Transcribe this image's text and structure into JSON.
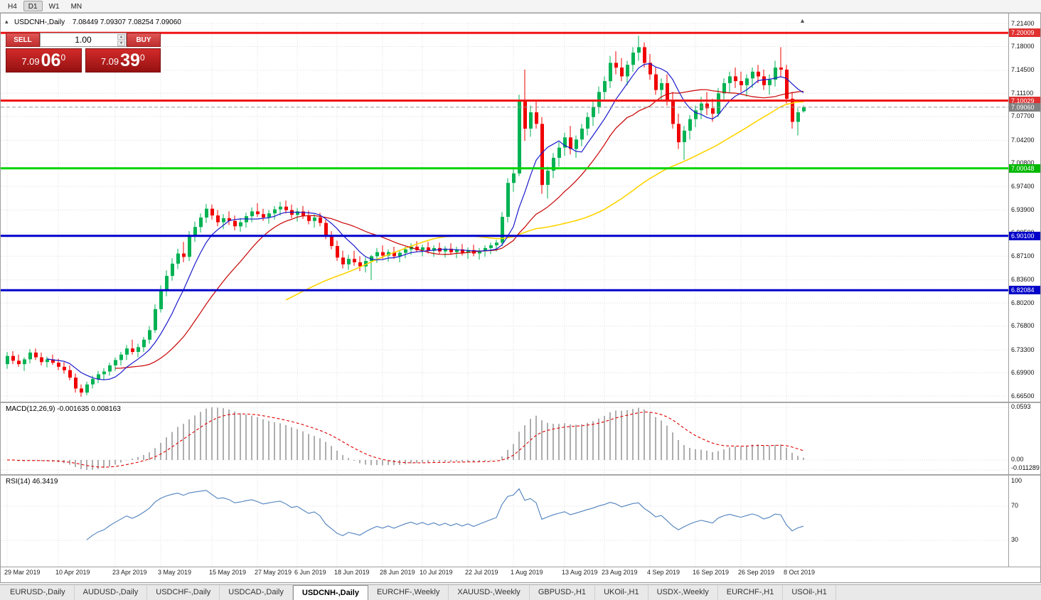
{
  "toolbar": {
    "timeframes": [
      {
        "label": "H4",
        "active": false
      },
      {
        "label": "D1",
        "active": true
      },
      {
        "label": "W1",
        "active": false
      },
      {
        "label": "MN",
        "active": false
      }
    ]
  },
  "chart": {
    "title_symbol": "USDCNH-,Daily",
    "title_ohlc": "7.08449 7.09307 7.08254 7.09060"
  },
  "icons": {
    "oct_toggle": "▴",
    "chart_shift": "▲",
    "spinner_up": "▲",
    "spinner_down": "▼"
  },
  "trade_panel": {
    "sell_label": "SELL",
    "buy_label": "BUY",
    "volume": "1.00",
    "sell_price": {
      "base": "7.09",
      "big": "06",
      "sup": "0"
    },
    "buy_price": {
      "base": "7.09",
      "big": "39",
      "sup": "0"
    }
  },
  "price_axis": {
    "ticks": [
      "7.21400",
      "7.18000",
      "7.14500",
      "7.11100",
      "7.07700",
      "7.04200",
      "7.00800",
      "6.97400",
      "6.93900",
      "6.90500",
      "6.87100",
      "6.83600",
      "6.80200",
      "6.76800",
      "6.73300",
      "6.69900",
      "6.66500"
    ]
  },
  "levels": [
    {
      "label": "7.20009",
      "value": 7.20009,
      "line_color": "#f01414",
      "badge_color": "#e03030",
      "width": 3,
      "dashed": false
    },
    {
      "label": "7.10029",
      "value": 7.10029,
      "line_color": "#f01414",
      "badge_color": "#e03030",
      "width": 3,
      "dashed": false
    },
    {
      "label": "7.09060",
      "value": 7.0906,
      "line_color": "#9a9a9a",
      "badge_color": "#808080",
      "width": 1,
      "dashed": true
    },
    {
      "label": "7.00048",
      "value": 7.00048,
      "line_color": "#00d400",
      "badge_color": "#00b800",
      "width": 3,
      "dashed": false
    },
    {
      "label": "6.90100",
      "value": 6.901,
      "line_color": "#0000cc",
      "badge_color": "#0000c8",
      "width": 3,
      "dashed": false
    },
    {
      "label": "6.82084",
      "value": 6.82084,
      "line_color": "#0000cc",
      "badge_color": "#0000c8",
      "width": 3,
      "dashed": false
    }
  ],
  "indicators": {
    "macd": {
      "label": "MACD(12,26,9) -0.001635 0.008163",
      "axis": [
        "0.0593",
        "0.00",
        "-0.011289"
      ]
    },
    "rsi": {
      "label": "RSI(14) 46.3419",
      "axis": [
        "100",
        "70",
        "30"
      ]
    }
  },
  "dates": [
    {
      "label": "29 Mar 2019",
      "i": 0
    },
    {
      "label": "10 Apr 2019",
      "i": 9
    },
    {
      "label": "23 Apr 2019",
      "i": 19
    },
    {
      "label": "3 May 2019",
      "i": 27
    },
    {
      "label": "15 May 2019",
      "i": 36
    },
    {
      "label": "27 May 2019",
      "i": 44
    },
    {
      "label": "6 Jun 2019",
      "i": 51
    },
    {
      "label": "18 Jun 2019",
      "i": 58
    },
    {
      "label": "28 Jun 2019",
      "i": 66
    },
    {
      "label": "10 Jul 2019",
      "i": 73
    },
    {
      "label": "22 Jul 2019",
      "i": 81
    },
    {
      "label": "1 Aug 2019",
      "i": 89
    },
    {
      "label": "13 Aug 2019",
      "i": 98
    },
    {
      "label": "23 Aug 2019",
      "i": 105
    },
    {
      "label": "4 Sep 2019",
      "i": 113
    },
    {
      "label": "16 Sep 2019",
      "i": 121
    },
    {
      "label": "26 Sep 2019",
      "i": 129
    },
    {
      "label": "8 Oct 2019",
      "i": 137
    }
  ],
  "tabs": [
    {
      "label": "EURUSD-,Daily",
      "active": false
    },
    {
      "label": "AUDUSD-,Daily",
      "active": false
    },
    {
      "label": "USDCHF-,Daily",
      "active": false
    },
    {
      "label": "USDCAD-,Daily",
      "active": false
    },
    {
      "label": "USDCNH-,Daily",
      "active": true
    },
    {
      "label": "EURCHF-,Weekly",
      "active": false
    },
    {
      "label": "XAUUSD-,Weekly",
      "active": false
    },
    {
      "label": "GBPUSD-,H1",
      "active": false
    },
    {
      "label": "UKOil-,H1",
      "active": false
    },
    {
      "label": "USDX-,Weekly",
      "active": false
    },
    {
      "label": "EURCHF-,H1",
      "active": false
    },
    {
      "label": "USOil-,H1",
      "active": false
    }
  ],
  "colors": {
    "candle_up": "#00b253",
    "candle_down": "#f00000",
    "ma_fast": "#1a1acd",
    "ma_mid": "#c80000",
    "ma_slow": "#ffd400",
    "macd_hist": "#8c8c8c",
    "macd_signal": "#e00000",
    "rsi": "#4f81bd"
  },
  "chart_data": {
    "type": "candlestick",
    "symbol": "USDCNH-",
    "timeframe": "Daily",
    "y_range": [
      6.665,
      7.214
    ],
    "last_ohlc": {
      "open": 7.08449,
      "high": 7.09307,
      "low": 7.08254,
      "close": 7.0906
    },
    "candles": [
      [
        6.712,
        6.73,
        6.705,
        6.724
      ],
      [
        6.724,
        6.731,
        6.712,
        6.717
      ],
      [
        6.717,
        6.726,
        6.708,
        6.712
      ],
      [
        6.712,
        6.722,
        6.702,
        6.719
      ],
      [
        6.719,
        6.734,
        6.713,
        6.729
      ],
      [
        6.729,
        6.735,
        6.718,
        6.722
      ],
      [
        6.722,
        6.729,
        6.71,
        6.715
      ],
      [
        6.715,
        6.723,
        6.707,
        6.719
      ],
      [
        6.719,
        6.726,
        6.711,
        6.714
      ],
      [
        6.714,
        6.72,
        6.703,
        6.708
      ],
      [
        6.708,
        6.715,
        6.698,
        6.703
      ],
      [
        6.703,
        6.71,
        6.688,
        6.692
      ],
      [
        6.692,
        6.698,
        6.67,
        6.676
      ],
      [
        6.676,
        6.682,
        6.664,
        6.67
      ],
      [
        6.67,
        6.686,
        6.666,
        6.682
      ],
      [
        6.682,
        6.695,
        6.676,
        6.69
      ],
      [
        6.69,
        6.702,
        6.684,
        6.697
      ],
      [
        6.697,
        6.706,
        6.688,
        6.701
      ],
      [
        6.701,
        6.714,
        6.695,
        6.71
      ],
      [
        6.71,
        6.722,
        6.702,
        6.718
      ],
      [
        6.718,
        6.73,
        6.71,
        6.726
      ],
      [
        6.726,
        6.74,
        6.718,
        6.735
      ],
      [
        6.735,
        6.748,
        6.726,
        6.73
      ],
      [
        6.73,
        6.742,
        6.722,
        6.737
      ],
      [
        6.737,
        6.752,
        6.73,
        6.748
      ],
      [
        6.748,
        6.768,
        6.742,
        6.762
      ],
      [
        6.762,
        6.8,
        6.758,
        6.793
      ],
      [
        6.793,
        6.828,
        6.788,
        6.82
      ],
      [
        6.82,
        6.85,
        6.812,
        6.842
      ],
      [
        6.842,
        6.868,
        6.835,
        6.86
      ],
      [
        6.86,
        6.882,
        6.852,
        6.875
      ],
      [
        6.875,
        6.892,
        6.862,
        6.87
      ],
      [
        6.87,
        6.908,
        6.864,
        6.9
      ],
      [
        6.9,
        6.922,
        6.892,
        6.914
      ],
      [
        6.914,
        6.934,
        6.906,
        6.928
      ],
      [
        6.928,
        6.948,
        6.92,
        6.941
      ],
      [
        6.941,
        6.947,
        6.925,
        6.931
      ],
      [
        6.931,
        6.939,
        6.915,
        6.921
      ],
      [
        6.921,
        6.933,
        6.911,
        6.927
      ],
      [
        6.927,
        6.937,
        6.917,
        6.923
      ],
      [
        6.923,
        6.931,
        6.909,
        6.915
      ],
      [
        6.915,
        6.927,
        6.907,
        6.921
      ],
      [
        6.921,
        6.935,
        6.913,
        6.93
      ],
      [
        6.93,
        6.943,
        6.921,
        6.937
      ],
      [
        6.937,
        6.949,
        6.929,
        6.933
      ],
      [
        6.933,
        6.941,
        6.923,
        6.928
      ],
      [
        6.928,
        6.939,
        6.919,
        6.934
      ],
      [
        6.934,
        6.945,
        6.925,
        6.94
      ],
      [
        6.94,
        6.951,
        6.931,
        6.944
      ],
      [
        6.944,
        6.953,
        6.934,
        6.939
      ],
      [
        6.939,
        6.947,
        6.927,
        6.932
      ],
      [
        6.932,
        6.942,
        6.922,
        6.937
      ],
      [
        6.937,
        6.945,
        6.926,
        6.93
      ],
      [
        6.93,
        6.938,
        6.918,
        6.923
      ],
      [
        6.923,
        6.933,
        6.913,
        6.928
      ],
      [
        6.928,
        6.935,
        6.915,
        6.92
      ],
      [
        6.92,
        6.925,
        6.896,
        6.9
      ],
      [
        6.9,
        6.908,
        6.881,
        6.886
      ],
      [
        6.886,
        6.894,
        6.864,
        6.869
      ],
      [
        6.869,
        6.879,
        6.853,
        6.859
      ],
      [
        6.859,
        6.873,
        6.851,
        6.867
      ],
      [
        6.867,
        6.879,
        6.857,
        6.862
      ],
      [
        6.862,
        6.871,
        6.849,
        6.856
      ],
      [
        6.856,
        6.869,
        6.847,
        6.864
      ],
      [
        6.864,
        6.873,
        6.836,
        6.871
      ],
      [
        6.871,
        6.883,
        6.861,
        6.877
      ],
      [
        6.877,
        6.887,
        6.867,
        6.872
      ],
      [
        6.872,
        6.881,
        6.863,
        6.877
      ],
      [
        6.877,
        6.885,
        6.867,
        6.871
      ],
      [
        6.871,
        6.88,
        6.862,
        6.876
      ],
      [
        6.876,
        6.885,
        6.868,
        6.881
      ],
      [
        6.881,
        6.89,
        6.873,
        6.885
      ],
      [
        6.885,
        6.893,
        6.877,
        6.88
      ],
      [
        6.88,
        6.888,
        6.871,
        6.884
      ],
      [
        6.884,
        6.892,
        6.875,
        6.879
      ],
      [
        6.879,
        6.887,
        6.87,
        6.883
      ],
      [
        6.883,
        6.891,
        6.874,
        6.878
      ],
      [
        6.878,
        6.886,
        6.869,
        6.882
      ],
      [
        6.882,
        6.89,
        6.873,
        6.877
      ],
      [
        6.877,
        6.885,
        6.868,
        6.881
      ],
      [
        6.881,
        6.889,
        6.872,
        6.876
      ],
      [
        6.876,
        6.884,
        6.867,
        6.88
      ],
      [
        6.88,
        6.888,
        6.871,
        6.875
      ],
      [
        6.875,
        6.883,
        6.866,
        6.879
      ],
      [
        6.879,
        6.887,
        6.87,
        6.883
      ],
      [
        6.883,
        6.891,
        6.874,
        6.887
      ],
      [
        6.887,
        6.895,
        6.878,
        6.891
      ],
      [
        6.891,
        6.936,
        6.886,
        6.929
      ],
      [
        6.929,
        6.986,
        6.921,
        6.979
      ],
      [
        6.979,
        7.001,
        6.966,
        6.993
      ],
      [
        6.993,
        7.109,
        6.989,
        7.099
      ],
      [
        7.099,
        7.146,
        7.041,
        7.059
      ],
      [
        7.059,
        7.093,
        7.047,
        7.083
      ],
      [
        7.083,
        7.099,
        7.059,
        7.066
      ],
      [
        7.066,
        7.076,
        6.963,
        6.976
      ],
      [
        6.976,
        7.003,
        6.956,
        6.997
      ],
      [
        6.997,
        7.023,
        6.986,
        7.016
      ],
      [
        7.016,
        7.039,
        7.003,
        7.031
      ],
      [
        7.031,
        7.053,
        7.019,
        7.046
      ],
      [
        7.046,
        7.063,
        7.021,
        7.029
      ],
      [
        7.029,
        7.049,
        7.016,
        7.043
      ],
      [
        7.043,
        7.066,
        7.033,
        7.059
      ],
      [
        7.059,
        7.083,
        7.049,
        7.076
      ],
      [
        7.076,
        7.099,
        7.063,
        7.091
      ],
      [
        7.091,
        7.121,
        7.081,
        7.113
      ],
      [
        7.113,
        7.136,
        7.101,
        7.129
      ],
      [
        7.129,
        7.166,
        7.119,
        7.156
      ],
      [
        7.156,
        7.173,
        7.139,
        7.149
      ],
      [
        7.149,
        7.163,
        7.129,
        7.136
      ],
      [
        7.136,
        7.159,
        7.123,
        7.153
      ],
      [
        7.153,
        7.179,
        7.143,
        7.171
      ],
      [
        7.171,
        7.196,
        7.159,
        7.179
      ],
      [
        7.179,
        7.186,
        7.149,
        7.156
      ],
      [
        7.156,
        7.169,
        7.131,
        7.139
      ],
      [
        7.139,
        7.149,
        7.109,
        7.116
      ],
      [
        7.116,
        7.133,
        7.099,
        7.126
      ],
      [
        7.126,
        7.139,
        7.093,
        7.099
      ],
      [
        7.099,
        7.113,
        7.059,
        7.066
      ],
      [
        7.066,
        7.081,
        7.029,
        7.039
      ],
      [
        7.039,
        7.063,
        7.013,
        7.056
      ],
      [
        7.056,
        7.079,
        7.043,
        7.073
      ],
      [
        7.073,
        7.093,
        7.061,
        7.086
      ],
      [
        7.086,
        7.106,
        7.073,
        7.096
      ],
      [
        7.096,
        7.113,
        7.079,
        7.089
      ],
      [
        7.089,
        7.103,
        7.069,
        7.081
      ],
      [
        7.081,
        7.119,
        7.076,
        7.111
      ],
      [
        7.111,
        7.133,
        7.099,
        7.126
      ],
      [
        7.126,
        7.143,
        7.111,
        7.136
      ],
      [
        7.136,
        7.149,
        7.119,
        7.129
      ],
      [
        7.129,
        7.143,
        7.113,
        7.123
      ],
      [
        7.123,
        7.139,
        7.106,
        7.133
      ],
      [
        7.133,
        7.149,
        7.119,
        7.143
      ],
      [
        7.143,
        7.153,
        7.126,
        7.136
      ],
      [
        7.136,
        7.146,
        7.116,
        7.123
      ],
      [
        7.123,
        7.139,
        7.109,
        7.131
      ],
      [
        7.131,
        7.159,
        7.121,
        7.149
      ],
      [
        7.149,
        7.179,
        7.136,
        7.146
      ],
      [
        7.146,
        7.153,
        7.096,
        7.103
      ],
      [
        7.103,
        7.113,
        7.059,
        7.069
      ],
      [
        7.069,
        7.089,
        7.049,
        7.083
      ],
      [
        7.08449,
        7.09307,
        7.08254,
        7.0906
      ]
    ]
  }
}
